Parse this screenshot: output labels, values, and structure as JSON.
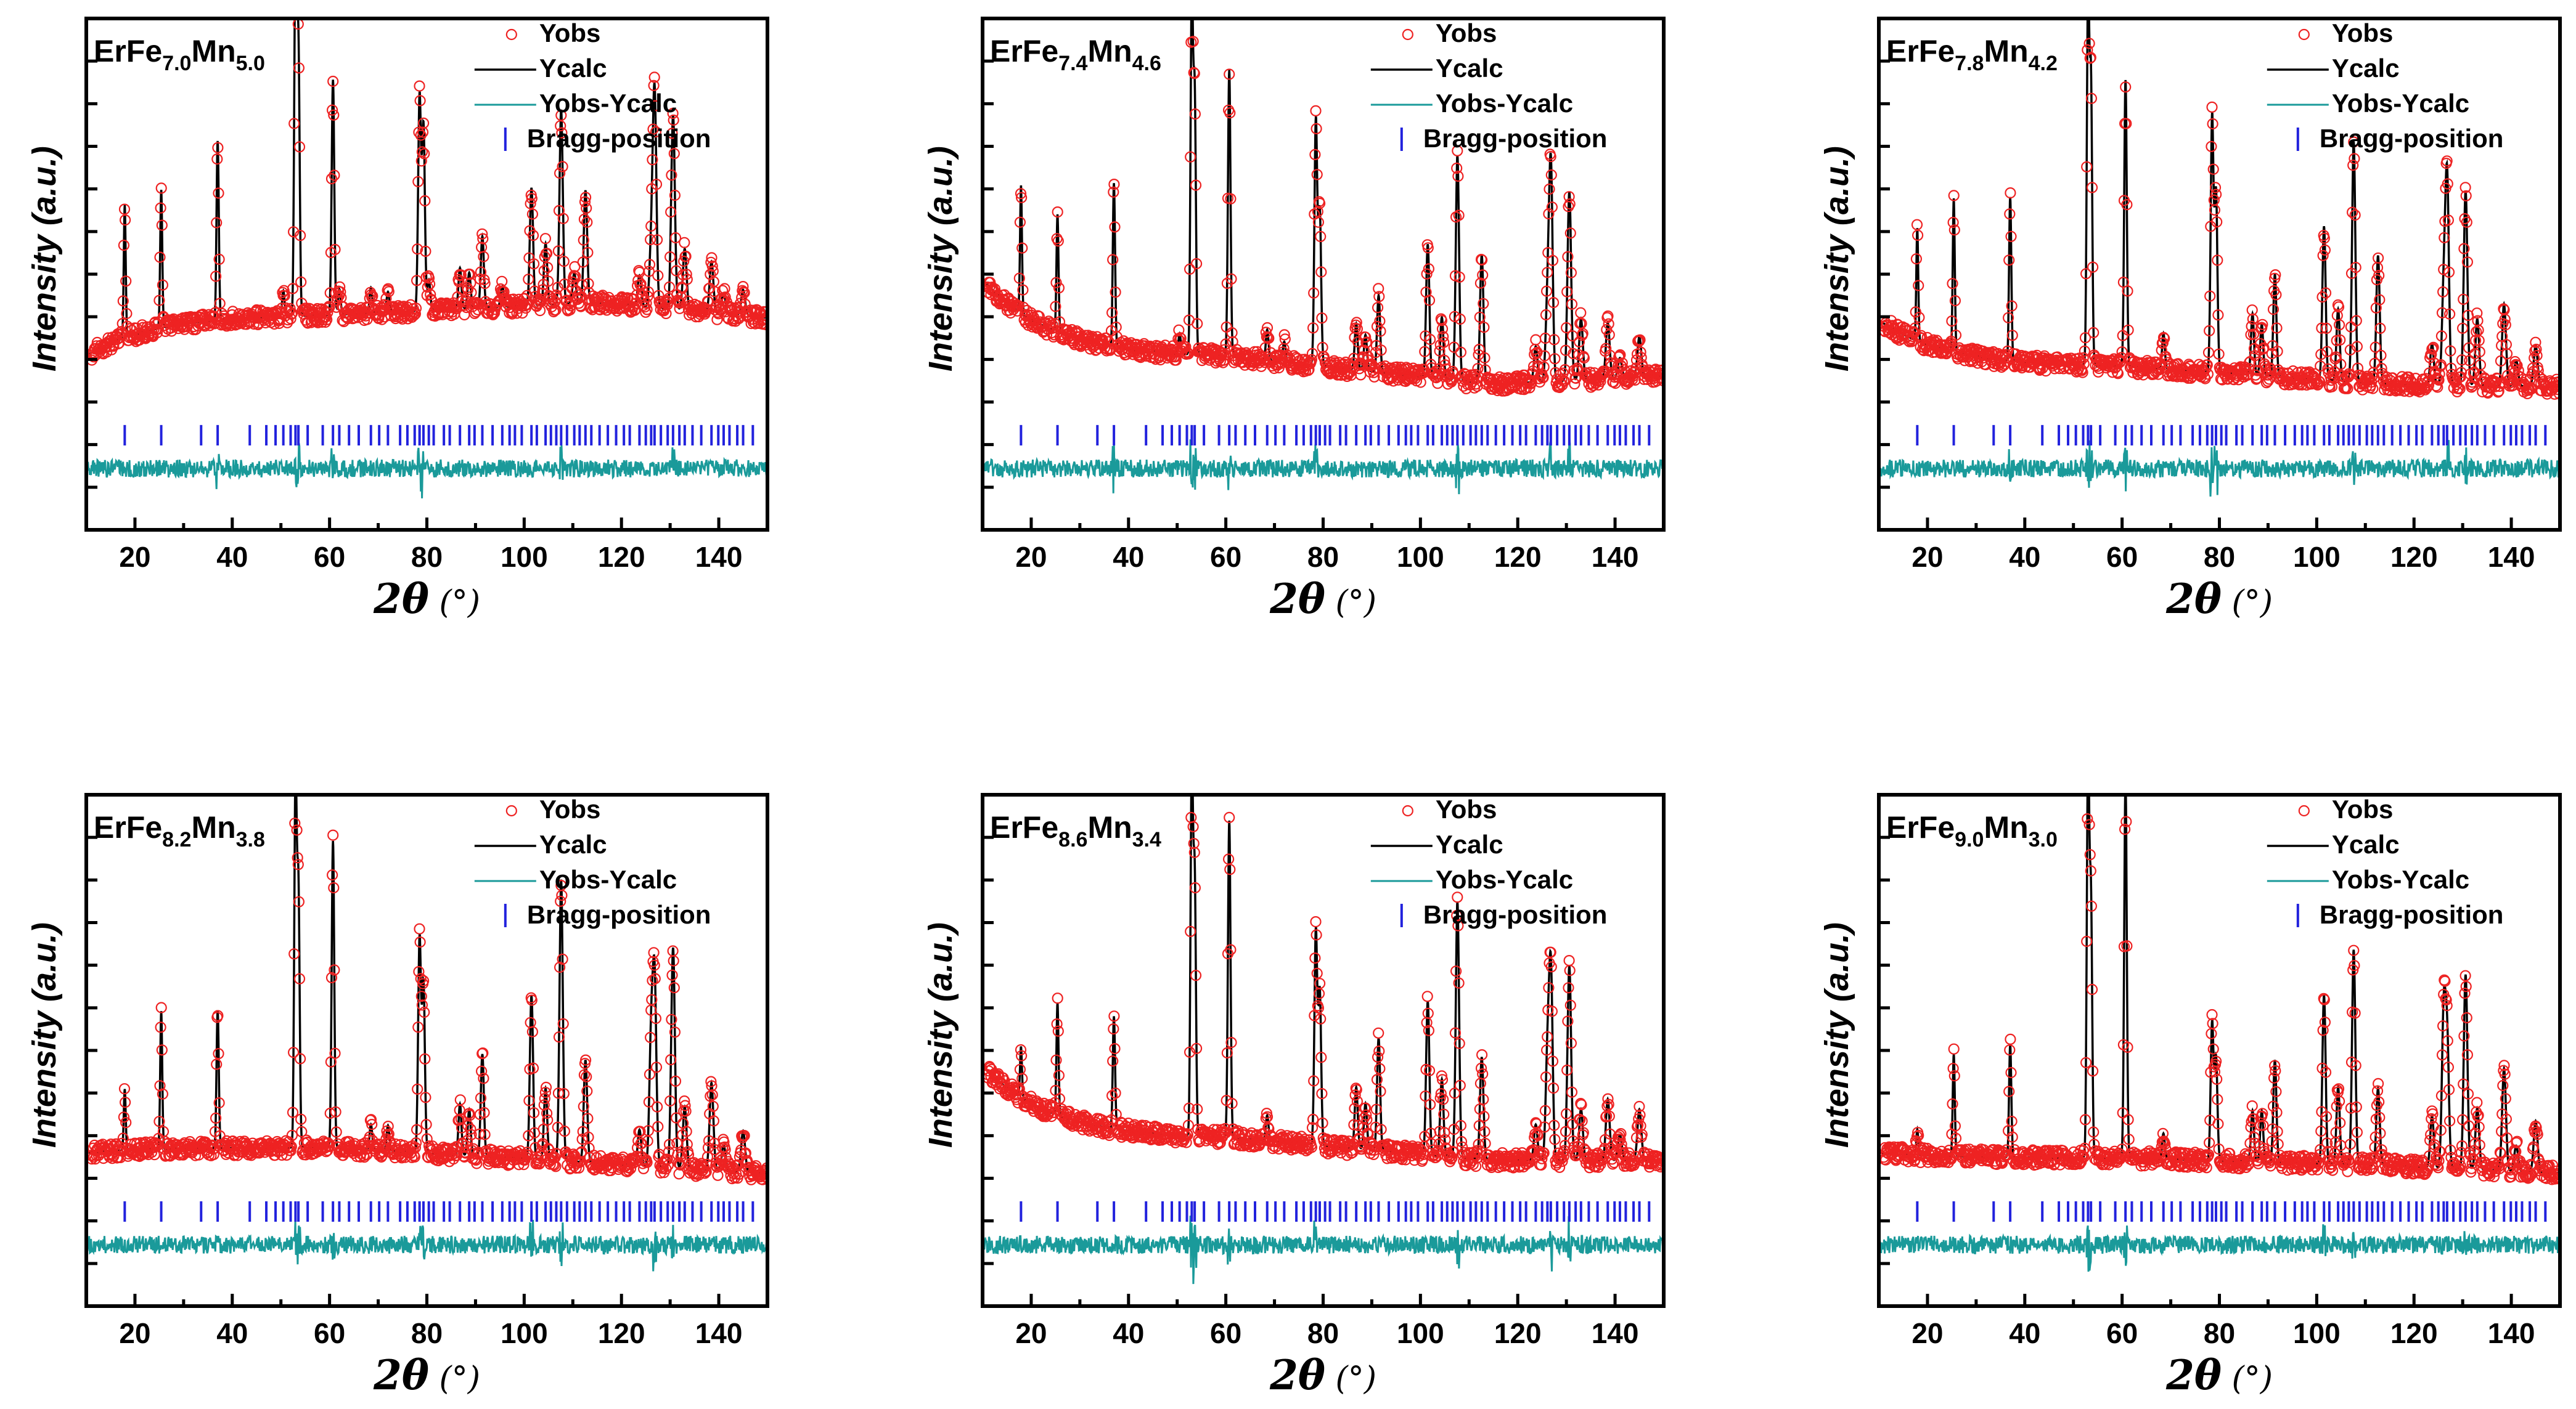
{
  "figure_name": "XRD Rietveld refinement panels",
  "colors": {
    "obs": "#ee2222",
    "calc": "#000000",
    "diff": "#1a9a9a",
    "bragg": "#2222dd"
  },
  "chart_data": [
    {
      "type": "scatter",
      "title_parts": {
        "el1": "ErFe",
        "sub1": "7.0",
        "el2": "Mn",
        "sub2": "5.0"
      },
      "xlabel_sym": "2θ",
      "xlabel_unit": " (°)",
      "ylabel": "Intensity (a.u.)",
      "xlim": [
        10,
        150
      ],
      "xticks": [
        20,
        40,
        60,
        80,
        100,
        120,
        140
      ],
      "legend": [
        "Yobs",
        "Ycalc",
        "Yobs-Ycalc",
        "Bragg-position"
      ],
      "series": [
        {
          "name": "Yobs"
        },
        {
          "name": "Ycalc"
        },
        {
          "name": "Yobs-Ycalc"
        },
        {
          "name": "Bragg-position"
        }
      ],
      "background": {
        "start": 0.66,
        "mid": 0.58,
        "min": 0.555,
        "end": 0.585
      },
      "peaks": [
        [
          17.9,
          0.26
        ],
        [
          25.4,
          0.27
        ],
        [
          37.0,
          0.35
        ],
        [
          50.5,
          0.05
        ],
        [
          53.0,
          0.72
        ],
        [
          53.6,
          0.52
        ],
        [
          60.7,
          0.46
        ],
        [
          62.0,
          0.05
        ],
        [
          68.5,
          0.05
        ],
        [
          72.0,
          0.04
        ],
        [
          78.5,
          0.42
        ],
        [
          79.3,
          0.36
        ],
        [
          80.4,
          0.06
        ],
        [
          86.8,
          0.08
        ],
        [
          88.7,
          0.07
        ],
        [
          91.4,
          0.14
        ],
        [
          95.5,
          0.04
        ],
        [
          101.5,
          0.23
        ],
        [
          104.4,
          0.12
        ],
        [
          107.6,
          0.38
        ],
        [
          110.3,
          0.06
        ],
        [
          112.6,
          0.22
        ],
        [
          123.7,
          0.06
        ],
        [
          126.1,
          0.11
        ],
        [
          126.8,
          0.42
        ],
        [
          130.6,
          0.38
        ],
        [
          133.0,
          0.12
        ],
        [
          138.5,
          0.1
        ],
        [
          141.0,
          0.04
        ],
        [
          145.0,
          0.05
        ]
      ],
      "bragg_positions": [
        17.9,
        25.4,
        33.6,
        37.0,
        43.6,
        47.0,
        48.9,
        50.5,
        52.0,
        53.0,
        53.6,
        55.5,
        58.6,
        60.7,
        62.0,
        64.0,
        66.0,
        68.5,
        70.2,
        72.0,
        74.5,
        76.0,
        77.5,
        78.5,
        79.3,
        80.4,
        81.4,
        83.5,
        84.7,
        86.8,
        88.7,
        89.8,
        91.4,
        93.5,
        95.5,
        97.0,
        98.1,
        99.5,
        101.5,
        102.6,
        104.4,
        105.5,
        106.6,
        107.6,
        108.8,
        110.3,
        111.4,
        112.6,
        113.8,
        115.5,
        117.2,
        118.9,
        120.5,
        121.7,
        123.7,
        125.0,
        126.1,
        126.8,
        128.1,
        129.5,
        130.6,
        131.9,
        133.0,
        134.6,
        136.4,
        138.5,
        139.9,
        141.0,
        142.2,
        143.8,
        145.0,
        147.0
      ]
    },
    {
      "type": "scatter",
      "title_parts": {
        "el1": "ErFe",
        "sub1": "7.4",
        "el2": "Mn",
        "sub2": "4.6"
      },
      "xlabel_sym": "2θ",
      "xlabel_unit": " (°)",
      "ylabel": "Intensity (a.u.)",
      "xlim": [
        10,
        150
      ],
      "xticks": [
        20,
        40,
        60,
        80,
        100,
        120,
        140
      ],
      "legend": [
        "Yobs",
        "Ycalc",
        "Yobs-Ycalc",
        "Bragg-position"
      ],
      "series": [
        {
          "name": "Yobs"
        },
        {
          "name": "Ycalc"
        },
        {
          "name": "Yobs-Ycalc"
        },
        {
          "name": "Bragg-position"
        }
      ],
      "background": {
        "start": 0.51,
        "mid": 0.66,
        "min": 0.715,
        "end": 0.7
      },
      "peaks": [
        [
          17.9,
          0.25
        ],
        [
          25.4,
          0.23
        ],
        [
          37.0,
          0.32
        ],
        [
          50.5,
          0.04
        ],
        [
          53.0,
          0.7
        ],
        [
          53.6,
          0.5
        ],
        [
          60.7,
          0.56
        ],
        [
          68.5,
          0.06
        ],
        [
          72.0,
          0.04
        ],
        [
          78.5,
          0.48
        ],
        [
          79.3,
          0.3
        ],
        [
          86.8,
          0.09
        ],
        [
          88.7,
          0.07
        ],
        [
          91.4,
          0.15
        ],
        [
          101.5,
          0.26
        ],
        [
          104.4,
          0.12
        ],
        [
          107.6,
          0.44
        ],
        [
          112.6,
          0.25
        ],
        [
          123.7,
          0.07
        ],
        [
          126.1,
          0.15
        ],
        [
          126.8,
          0.42
        ],
        [
          130.6,
          0.37
        ],
        [
          133.0,
          0.12
        ],
        [
          138.5,
          0.11
        ],
        [
          141.0,
          0.04
        ],
        [
          145.0,
          0.08
        ]
      ],
      "bragg_positions": [
        17.9,
        25.4,
        33.6,
        37.0,
        43.6,
        47.0,
        48.9,
        50.5,
        52.0,
        53.0,
        53.6,
        55.5,
        58.6,
        60.7,
        62.0,
        64.0,
        66.0,
        68.5,
        70.2,
        72.0,
        74.5,
        76.0,
        77.5,
        78.5,
        79.3,
        80.4,
        81.4,
        83.5,
        84.7,
        86.8,
        88.7,
        89.8,
        91.4,
        93.5,
        95.5,
        97.0,
        98.1,
        99.5,
        101.5,
        102.6,
        104.4,
        105.5,
        106.6,
        107.6,
        108.8,
        110.3,
        111.4,
        112.6,
        113.8,
        115.5,
        117.2,
        118.9,
        120.5,
        121.7,
        123.7,
        125.0,
        126.1,
        126.8,
        128.1,
        129.5,
        130.6,
        131.9,
        133.0,
        134.6,
        136.4,
        138.5,
        139.9,
        141.0,
        142.2,
        143.8,
        145.0,
        147.0
      ]
    },
    {
      "type": "scatter",
      "title_parts": {
        "el1": "ErFe",
        "sub1": "7.8",
        "el2": "Mn",
        "sub2": "4.2"
      },
      "xlabel_sym": "2θ",
      "xlabel_unit": " (°)",
      "ylabel": "Intensity (a.u.)",
      "xlim": [
        10,
        150
      ],
      "xticks": [
        20,
        40,
        60,
        80,
        100,
        120,
        140
      ],
      "legend": [
        "Yobs",
        "Ycalc",
        "Yobs-Ycalc",
        "Bragg-position"
      ],
      "series": [
        {
          "name": "Yobs"
        },
        {
          "name": "Ycalc"
        },
        {
          "name": "Yobs-Ycalc"
        },
        {
          "name": "Bragg-position"
        }
      ],
      "background": {
        "start": 0.59,
        "mid": 0.68,
        "min": 0.715,
        "end": 0.72
      },
      "peaks": [
        [
          17.9,
          0.22
        ],
        [
          25.4,
          0.3
        ],
        [
          37.0,
          0.32
        ],
        [
          53.0,
          0.72
        ],
        [
          53.6,
          0.55
        ],
        [
          60.7,
          0.56
        ],
        [
          68.5,
          0.07
        ],
        [
          78.5,
          0.5
        ],
        [
          79.3,
          0.35
        ],
        [
          86.8,
          0.12
        ],
        [
          88.7,
          0.1
        ],
        [
          91.4,
          0.2
        ],
        [
          101.5,
          0.3
        ],
        [
          104.4,
          0.14
        ],
        [
          107.6,
          0.47
        ],
        [
          112.6,
          0.25
        ],
        [
          123.7,
          0.08
        ],
        [
          126.1,
          0.18
        ],
        [
          126.8,
          0.4
        ],
        [
          130.6,
          0.38
        ],
        [
          133.0,
          0.13
        ],
        [
          138.5,
          0.16
        ],
        [
          141.0,
          0.05
        ],
        [
          145.0,
          0.08
        ]
      ],
      "bragg_positions": [
        17.9,
        25.4,
        33.6,
        37.0,
        43.6,
        47.0,
        48.9,
        50.5,
        52.0,
        53.0,
        53.6,
        55.5,
        58.6,
        60.7,
        62.0,
        64.0,
        66.0,
        68.5,
        70.2,
        72.0,
        74.5,
        76.0,
        77.5,
        78.5,
        79.3,
        80.4,
        81.4,
        83.5,
        84.7,
        86.8,
        88.7,
        89.8,
        91.4,
        93.5,
        95.5,
        97.0,
        98.1,
        99.5,
        101.5,
        102.6,
        104.4,
        105.5,
        106.6,
        107.6,
        108.8,
        110.3,
        111.4,
        112.6,
        113.8,
        115.5,
        117.2,
        118.9,
        120.5,
        121.7,
        123.7,
        125.0,
        126.1,
        126.8,
        128.1,
        129.5,
        130.6,
        131.9,
        133.0,
        134.6,
        136.4,
        138.5,
        139.9,
        141.0,
        142.2,
        143.8,
        145.0,
        147.0
      ]
    },
    {
      "type": "scatter",
      "title_parts": {
        "el1": "ErFe",
        "sub1": "8.2",
        "el2": "Mn",
        "sub2": "3.8"
      },
      "xlabel_sym": "2θ",
      "xlabel_unit": " (°)",
      "ylabel": "Intensity (a.u.)",
      "xlim": [
        10,
        150
      ],
      "xticks": [
        20,
        40,
        60,
        80,
        100,
        120,
        140
      ],
      "legend": [
        "Yobs",
        "Ycalc",
        "Yobs-Ycalc",
        "Bragg-position"
      ],
      "series": [
        {
          "name": "Yobs"
        },
        {
          "name": "Ycalc"
        },
        {
          "name": "Yobs-Ycalc"
        },
        {
          "name": "Bragg-position"
        }
      ],
      "background": {
        "start": 0.7,
        "mid": 0.69,
        "min": 0.72,
        "end": 0.74
      },
      "peaks": [
        [
          17.9,
          0.12
        ],
        [
          25.4,
          0.27
        ],
        [
          37.0,
          0.27
        ],
        [
          53.0,
          0.72
        ],
        [
          53.6,
          0.5
        ],
        [
          60.7,
          0.6
        ],
        [
          68.5,
          0.05
        ],
        [
          72.0,
          0.05
        ],
        [
          78.5,
          0.42
        ],
        [
          79.3,
          0.33
        ],
        [
          86.8,
          0.1
        ],
        [
          88.7,
          0.09
        ],
        [
          91.4,
          0.2
        ],
        [
          101.5,
          0.32
        ],
        [
          104.4,
          0.14
        ],
        [
          107.6,
          0.55
        ],
        [
          112.6,
          0.2
        ],
        [
          123.7,
          0.07
        ],
        [
          126.1,
          0.25
        ],
        [
          126.8,
          0.36
        ],
        [
          130.6,
          0.43
        ],
        [
          133.0,
          0.12
        ],
        [
          138.5,
          0.17
        ],
        [
          141.0,
          0.05
        ],
        [
          145.0,
          0.08
        ]
      ],
      "bragg_positions": [
        17.9,
        25.4,
        33.6,
        37.0,
        43.6,
        47.0,
        48.9,
        50.5,
        52.0,
        53.0,
        53.6,
        55.5,
        58.6,
        60.7,
        62.0,
        64.0,
        66.0,
        68.5,
        70.2,
        72.0,
        74.5,
        76.0,
        77.5,
        78.5,
        79.3,
        80.4,
        81.4,
        83.5,
        84.7,
        86.8,
        88.7,
        89.8,
        91.4,
        93.5,
        95.5,
        97.0,
        98.1,
        99.5,
        101.5,
        102.6,
        104.4,
        105.5,
        106.6,
        107.6,
        108.8,
        110.3,
        111.4,
        112.6,
        113.8,
        115.5,
        117.2,
        118.9,
        120.5,
        121.7,
        123.7,
        125.0,
        126.1,
        126.8,
        128.1,
        129.5,
        130.6,
        131.9,
        133.0,
        134.6,
        136.4,
        138.5,
        139.9,
        141.0,
        142.2,
        143.8,
        145.0,
        147.0
      ]
    },
    {
      "type": "scatter",
      "title_parts": {
        "el1": "ErFe",
        "sub1": "8.6",
        "el2": "Mn",
        "sub2": "3.4"
      },
      "xlabel_sym": "2θ",
      "xlabel_unit": " (°)",
      "ylabel": "Intensity (a.u.)",
      "xlim": [
        10,
        150
      ],
      "xticks": [
        20,
        40,
        60,
        80,
        100,
        120,
        140
      ],
      "legend": [
        "Yobs",
        "Ycalc",
        "Yobs-Ycalc",
        "Bragg-position"
      ],
      "series": [
        {
          "name": "Yobs"
        },
        {
          "name": "Ycalc"
        },
        {
          "name": "Yobs-Ycalc"
        },
        {
          "name": "Bragg-position"
        }
      ],
      "background": {
        "start": 0.53,
        "mid": 0.67,
        "min": 0.715,
        "end": 0.715
      },
      "peaks": [
        [
          17.9,
          0.1
        ],
        [
          25.4,
          0.22
        ],
        [
          37.0,
          0.22
        ],
        [
          53.0,
          0.72
        ],
        [
          53.6,
          0.5
        ],
        [
          60.7,
          0.62
        ],
        [
          68.5,
          0.05
        ],
        [
          78.5,
          0.42
        ],
        [
          79.3,
          0.3
        ],
        [
          86.8,
          0.12
        ],
        [
          88.7,
          0.09
        ],
        [
          91.4,
          0.22
        ],
        [
          101.5,
          0.3
        ],
        [
          104.4,
          0.15
        ],
        [
          107.6,
          0.5
        ],
        [
          112.6,
          0.2
        ],
        [
          123.7,
          0.07
        ],
        [
          126.1,
          0.2
        ],
        [
          126.8,
          0.37
        ],
        [
          130.6,
          0.38
        ],
        [
          133.0,
          0.1
        ],
        [
          138.5,
          0.12
        ],
        [
          141.0,
          0.05
        ],
        [
          145.0,
          0.1
        ]
      ],
      "bragg_positions": [
        17.9,
        25.4,
        33.6,
        37.0,
        43.6,
        47.0,
        48.9,
        50.5,
        52.0,
        53.0,
        53.6,
        55.5,
        58.6,
        60.7,
        62.0,
        64.0,
        66.0,
        68.5,
        70.2,
        72.0,
        74.5,
        76.0,
        77.5,
        78.5,
        79.3,
        80.4,
        81.4,
        83.5,
        84.7,
        86.8,
        88.7,
        89.8,
        91.4,
        93.5,
        95.5,
        97.0,
        98.1,
        99.5,
        101.5,
        102.6,
        104.4,
        105.5,
        106.6,
        107.6,
        108.8,
        110.3,
        111.4,
        112.6,
        113.8,
        115.5,
        117.2,
        118.9,
        120.5,
        121.7,
        123.7,
        125.0,
        126.1,
        126.8,
        128.1,
        129.5,
        130.6,
        131.9,
        133.0,
        134.6,
        136.4,
        138.5,
        139.9,
        141.0,
        142.2,
        143.8,
        145.0,
        147.0
      ]
    },
    {
      "type": "scatter",
      "title_parts": {
        "el1": "ErFe",
        "sub1": "9.0",
        "el2": "Mn",
        "sub2": "3.0"
      },
      "xlabel_sym": "2θ",
      "xlabel_unit": " (°)",
      "ylabel": "Intensity (a.u.)",
      "xlim": [
        10,
        150
      ],
      "xticks": [
        20,
        40,
        60,
        80,
        100,
        120,
        140
      ],
      "legend": [
        "Yobs",
        "Ycalc",
        "Yobs-Ycalc",
        "Bragg-position"
      ],
      "series": [
        {
          "name": "Yobs"
        },
        {
          "name": "Ycalc"
        },
        {
          "name": "Yobs-Ycalc"
        },
        {
          "name": "Bragg-position"
        }
      ],
      "background": {
        "start": 0.7,
        "mid": 0.71,
        "min": 0.725,
        "end": 0.74
      },
      "peaks": [
        [
          17.9,
          0.05
        ],
        [
          25.4,
          0.2
        ],
        [
          37.0,
          0.22
        ],
        [
          53.0,
          0.78
        ],
        [
          53.6,
          0.5
        ],
        [
          60.7,
          0.74
        ],
        [
          68.5,
          0.05
        ],
        [
          78.5,
          0.27
        ],
        [
          79.3,
          0.2
        ],
        [
          86.8,
          0.1
        ],
        [
          88.7,
          0.1
        ],
        [
          91.4,
          0.2
        ],
        [
          101.5,
          0.33
        ],
        [
          104.4,
          0.15
        ],
        [
          107.6,
          0.42
        ],
        [
          112.6,
          0.15
        ],
        [
          123.7,
          0.1
        ],
        [
          126.1,
          0.3
        ],
        [
          126.8,
          0.25
        ],
        [
          130.6,
          0.38
        ],
        [
          133.0,
          0.12
        ],
        [
          138.5,
          0.2
        ],
        [
          141.0,
          0.05
        ],
        [
          145.0,
          0.1
        ]
      ],
      "bragg_positions": [
        17.9,
        25.4,
        33.6,
        37.0,
        43.6,
        47.0,
        48.9,
        50.5,
        52.0,
        53.0,
        53.6,
        55.5,
        58.6,
        60.7,
        62.0,
        64.0,
        66.0,
        68.5,
        70.2,
        72.0,
        74.5,
        76.0,
        77.5,
        78.5,
        79.3,
        80.4,
        81.4,
        83.5,
        84.7,
        86.8,
        88.7,
        89.8,
        91.4,
        93.5,
        95.5,
        97.0,
        98.1,
        99.5,
        101.5,
        102.6,
        104.4,
        105.5,
        106.6,
        107.6,
        108.8,
        110.3,
        111.4,
        112.6,
        113.8,
        115.5,
        117.2,
        118.9,
        120.5,
        121.7,
        123.7,
        125.0,
        126.1,
        126.8,
        128.1,
        129.5,
        130.6,
        131.9,
        133.0,
        134.6,
        136.4,
        138.5,
        139.9,
        141.0,
        142.2,
        143.8,
        145.0,
        147.0
      ]
    }
  ]
}
